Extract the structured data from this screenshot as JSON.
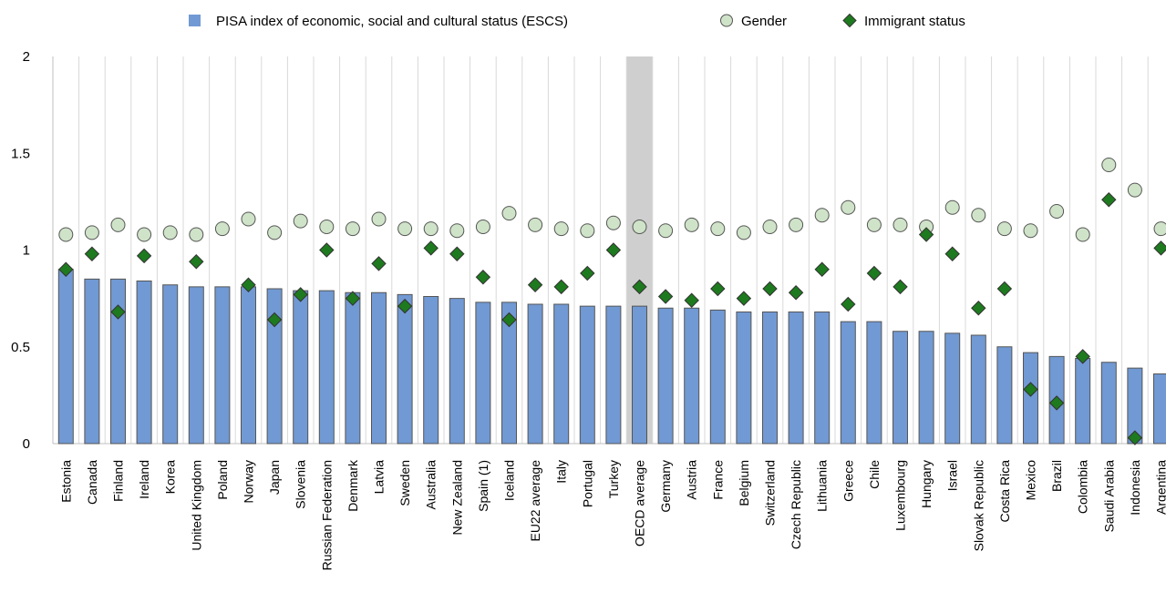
{
  "chart_data": {
    "type": "bar",
    "title": "",
    "xlabel": "",
    "ylabel": "",
    "ylim": [
      0,
      2
    ],
    "yticks": [
      {
        "value": 0,
        "label": "0"
      },
      {
        "value": 0.5,
        "label": "0.5"
      },
      {
        "value": 1,
        "label": "1"
      },
      {
        "value": 1.5,
        "label": "1.5"
      },
      {
        "value": 2,
        "label": "2"
      }
    ],
    "grid": "vertical",
    "legend_position": "top",
    "highlighted_category": "OECD average",
    "colors": {
      "bar": "#7199d3",
      "bar_edge": "#555555",
      "gender_fill": "#cfe3c8",
      "gender_edge": "#555555",
      "immigrant_fill": "#1e7a1e",
      "immigrant_edge": "#333333",
      "highlight": "#cfcfcf",
      "grid": "#d9d9d9"
    },
    "categories": [
      "Estonia",
      "Canada",
      "Finland",
      "Ireland",
      "Korea",
      "United Kingdom",
      "Poland",
      "Norway",
      "Japan",
      "Slovenia",
      "Russian Federation",
      "Denmark",
      "Latvia",
      "Sweden",
      "Australia",
      "New Zealand",
      "Spain (1)",
      "Iceland",
      "EU22 average",
      "Italy",
      "Portugal",
      "Turkey",
      "OECD average",
      "Germany",
      "Austria",
      "France",
      "Belgium",
      "Switzerland",
      "Czech Republic",
      "Lithuania",
      "Greece",
      "Chile",
      "Luxembourg",
      "Hungary",
      "Israel",
      "Slovak Republic",
      "Costa Rica",
      "Mexico",
      "Brazil",
      "Colombia",
      "Saudi Arabia",
      "Indonesia",
      "Argentina"
    ],
    "series": [
      {
        "name": "PISA index of economic, social and cultural status (ESCS)",
        "kind": "bar",
        "values": [
          0.9,
          0.85,
          0.85,
          0.84,
          0.82,
          0.81,
          0.81,
          0.81,
          0.8,
          0.79,
          0.79,
          0.78,
          0.78,
          0.77,
          0.76,
          0.75,
          0.73,
          0.73,
          0.72,
          0.72,
          0.71,
          0.71,
          0.71,
          0.7,
          0.7,
          0.69,
          0.68,
          0.68,
          0.68,
          0.68,
          0.63,
          0.63,
          0.58,
          0.58,
          0.57,
          0.56,
          0.5,
          0.47,
          0.45,
          0.44,
          0.42,
          0.39,
          0.36
        ]
      },
      {
        "name": "Gender",
        "kind": "circle",
        "values": [
          1.08,
          1.09,
          1.13,
          1.08,
          1.09,
          1.08,
          1.11,
          1.16,
          1.09,
          1.15,
          1.12,
          1.11,
          1.16,
          1.11,
          1.11,
          1.1,
          1.12,
          1.19,
          1.13,
          1.11,
          1.1,
          1.14,
          1.12,
          1.1,
          1.13,
          1.11,
          1.09,
          1.12,
          1.13,
          1.18,
          1.22,
          1.13,
          1.13,
          1.12,
          1.22,
          1.18,
          1.11,
          1.1,
          1.2,
          1.08,
          1.44,
          1.31,
          1.11
        ]
      },
      {
        "name": "Immigrant status",
        "kind": "diamond",
        "values": [
          0.9,
          0.98,
          0.68,
          0.97,
          null,
          0.94,
          null,
          0.82,
          0.64,
          0.77,
          1.0,
          0.75,
          0.93,
          0.71,
          1.01,
          0.98,
          0.86,
          0.64,
          0.82,
          0.81,
          0.88,
          1.0,
          0.81,
          0.76,
          0.74,
          0.8,
          0.75,
          0.8,
          0.78,
          0.9,
          0.72,
          0.88,
          0.81,
          1.08,
          0.98,
          0.7,
          0.8,
          0.28,
          0.21,
          0.45,
          1.26,
          0.03,
          1.01
        ]
      }
    ]
  }
}
